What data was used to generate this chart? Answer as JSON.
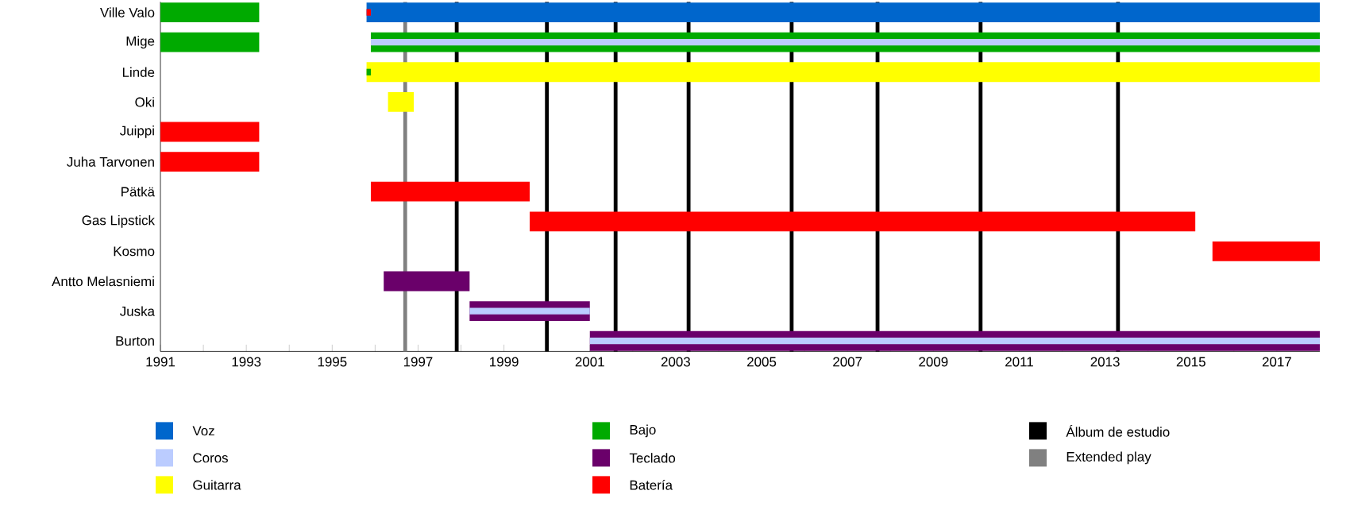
{
  "chart_data": {
    "type": "bar",
    "orientation": "horizontal",
    "legend": "bottom",
    "categories": [
      "Ville Valo",
      "Mige",
      "Linde",
      "Oki",
      "Juippi",
      "Juha Tarvonen",
      "Pätkä",
      "Gas Lipstick",
      "Kosmo",
      "Antto Melasniemi",
      "Juska",
      "Burton"
    ],
    "xlim": [
      1991,
      2018
    ],
    "xticks": [
      1991,
      {
        "value": 1992,
        "label": null
      },
      1993,
      {
        "value": 1994,
        "label": null
      },
      1995,
      {
        "value": 1996,
        "label": null
      },
      1997,
      {
        "value": 1998,
        "label": null
      },
      1999,
      {
        "value": 2000,
        "label": null
      },
      2001,
      {
        "value": 2002,
        "label": null
      },
      2003,
      {
        "value": 2004,
        "label": null
      },
      2005,
      {
        "value": 2006,
        "label": null
      },
      2007,
      {
        "value": 2008,
        "label": null
      },
      2009,
      {
        "value": 2010,
        "label": null
      },
      2011,
      {
        "value": 2012,
        "label": null
      },
      2013,
      {
        "value": 2014,
        "label": null
      },
      2015,
      {
        "value": 2016,
        "label": null
      },
      2017
    ],
    "series": [
      {
        "name": "Voz",
        "color": "#0066cc",
        "base": [
          1995.8,
          null,
          null,
          null,
          null,
          null,
          null,
          null,
          null,
          null,
          null,
          null
        ],
        "values": [
          22.2,
          null,
          null,
          null,
          null,
          null,
          null,
          null,
          null,
          null,
          null,
          null
        ]
      },
      {
        "name": "Coros",
        "color": "#bbccff",
        "base": [
          null,
          1995.9,
          null,
          null,
          null,
          null,
          null,
          null,
          null,
          null,
          1998.2,
          2001.0
        ],
        "values": [
          null,
          22.1,
          null,
          null,
          null,
          null,
          null,
          null,
          null,
          null,
          2.8,
          17.0
        ]
      },
      {
        "name": "Guitarra",
        "color": "#ffff00",
        "base": [
          null,
          null,
          1995.8,
          1996.3,
          null,
          null,
          null,
          null,
          null,
          null,
          null,
          null
        ],
        "values": [
          null,
          null,
          22.2,
          0.6,
          null,
          null,
          null,
          null,
          null,
          null,
          null,
          null
        ]
      },
      {
        "name": "Bajo",
        "color": "#00aa00",
        "base": [
          1991,
          1991,
          1995.8,
          null,
          null,
          null,
          null,
          null,
          null,
          null,
          null,
          null
        ],
        "values": [
          2.3,
          2.3,
          0.1,
          null,
          null,
          null,
          null,
          null,
          null,
          null,
          null,
          null
        ]
      },
      {
        "color": "#00aa00",
        "base": [
          null,
          1995.9,
          null,
          null,
          null,
          null,
          null,
          null,
          null,
          null,
          null,
          null
        ],
        "values": [
          null,
          22.1,
          null,
          null,
          null,
          null,
          null,
          null,
          null,
          null,
          null,
          null
        ]
      },
      {
        "name": "Teclado",
        "color": "#6a006a",
        "base": [
          null,
          null,
          null,
          null,
          null,
          null,
          null,
          null,
          null,
          1996.2,
          1998.2,
          2001.0
        ],
        "values": [
          null,
          null,
          null,
          null,
          null,
          null,
          null,
          null,
          null,
          2.0,
          2.8,
          17.0
        ]
      },
      {
        "name": "Batería",
        "color": "#ff0000",
        "base": [
          1995.8,
          null,
          null,
          null,
          1991,
          1991,
          1995.9,
          1999.6,
          2015.5,
          null,
          null,
          null
        ],
        "values": [
          0.1,
          null,
          null,
          null,
          2.3,
          2.3,
          3.7,
          15.5,
          2.5,
          null,
          null,
          null
        ]
      }
    ],
    "ref_lines": [
      {
        "axis": "x",
        "value": 1997.9,
        "label": "Álbum de estudio",
        "color": "#000000"
      },
      {
        "axis": "x",
        "value": 2000.0,
        "color": "#000000"
      },
      {
        "axis": "x",
        "value": 2001.6,
        "color": "#000000"
      },
      {
        "axis": "x",
        "value": 2003.3,
        "color": "#000000"
      },
      {
        "axis": "x",
        "value": 2005.7,
        "color": "#000000"
      },
      {
        "axis": "x",
        "value": 2007.7,
        "color": "#000000"
      },
      {
        "axis": "x",
        "value": 2010.1,
        "color": "#000000"
      },
      {
        "axis": "x",
        "value": 2013.3,
        "color": "#000000"
      },
      {
        "axis": "x",
        "value": 1996.7,
        "label": "Extended play",
        "color": "#808080"
      }
    ]
  }
}
